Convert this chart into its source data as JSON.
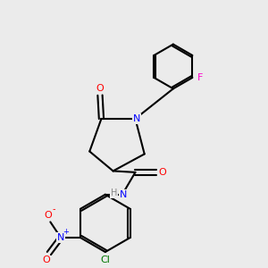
{
  "bg_color": "#ebebeb",
  "bond_color": "#000000",
  "atom_colors": {
    "O": "#ff0000",
    "N": "#0000ff",
    "F": "#ff00cc",
    "Cl": "#007700",
    "H": "#888888",
    "C": "#000000"
  },
  "font_size": 8,
  "lw": 1.5
}
